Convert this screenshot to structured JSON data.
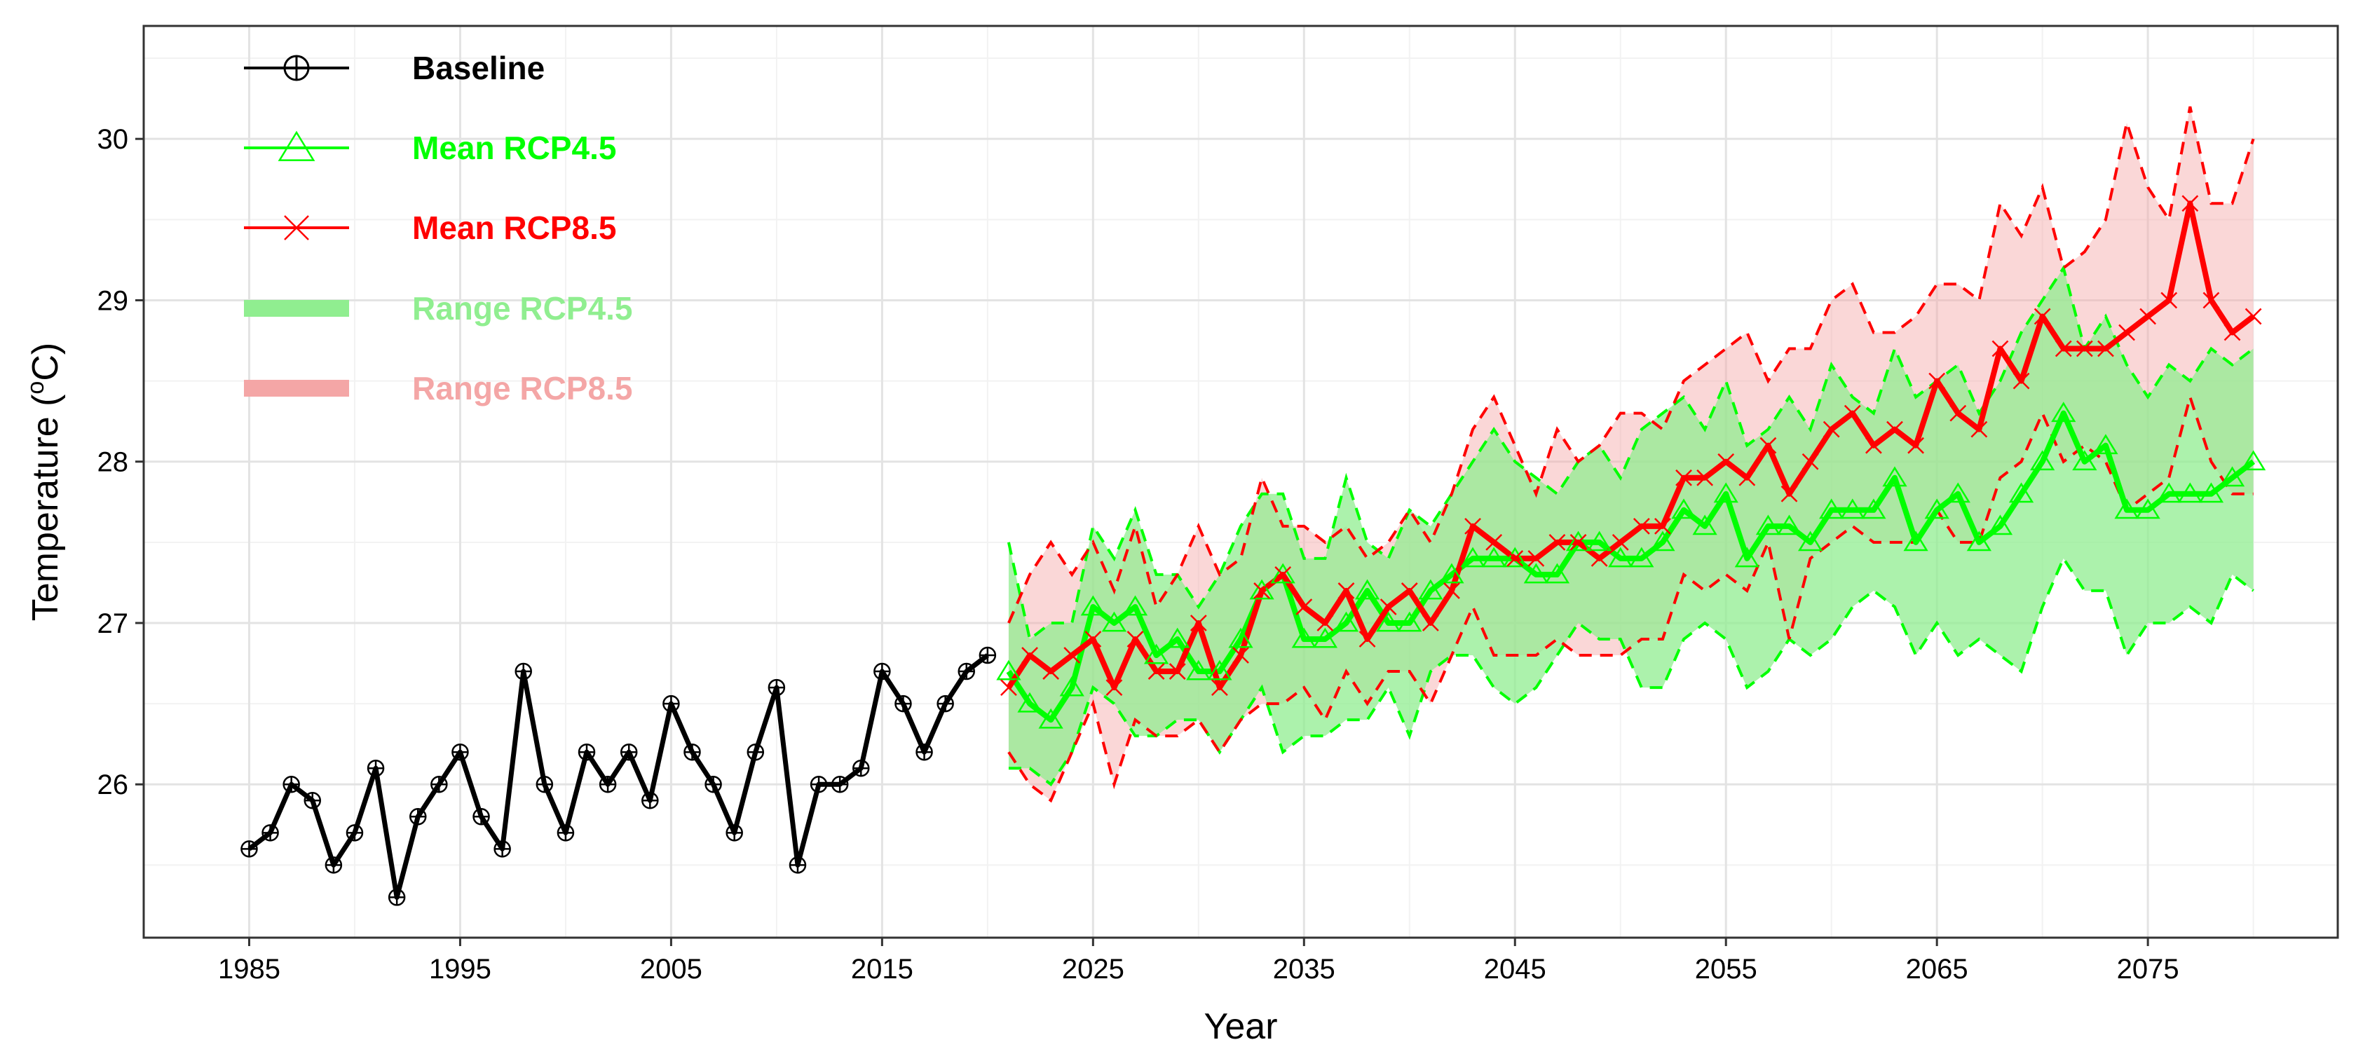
{
  "chart_data": {
    "type": "line",
    "xlabel": "Year",
    "ylabel_main": "Temperature (",
    "ylabel_sup": "o",
    "ylabel_end": "C)",
    "xlim": [
      1980,
      2084
    ],
    "ylim": [
      25.05,
      30.7
    ],
    "x_ticks": [
      1985,
      1995,
      2005,
      2015,
      2025,
      2035,
      2045,
      2055,
      2065,
      2075
    ],
    "x_tick_labels": [
      "1985",
      "1995",
      "2005",
      "2015",
      "2025",
      "2035",
      "2045",
      "2055",
      "2065",
      "2075"
    ],
    "y_ticks": [
      26,
      27,
      28,
      29,
      30
    ],
    "y_tick_labels": [
      "26",
      "27",
      "28",
      "29",
      "30"
    ],
    "grid": true,
    "legend_position": "top-left",
    "legend": [
      {
        "label": "Baseline",
        "color": "#000000",
        "kind": "line-circle-plus"
      },
      {
        "label": "Mean RCP4.5",
        "color": "#00FF00",
        "kind": "line-triangle"
      },
      {
        "label": "Mean RCP8.5",
        "color": "#FF0000",
        "kind": "line-cross"
      },
      {
        "label": "Range RCP4.5",
        "color": "#90EE90",
        "kind": "band"
      },
      {
        "label": "Range RCP8.5",
        "color": "#F4A6A6",
        "kind": "band"
      }
    ],
    "baseline": {
      "name": "Baseline",
      "color": "#000000",
      "x": [
        1985,
        1986,
        1987,
        1988,
        1989,
        1990,
        1991,
        1992,
        1993,
        1994,
        1995,
        1996,
        1997,
        1998,
        1999,
        2000,
        2001,
        2002,
        2003,
        2004,
        2005,
        2006,
        2007,
        2008,
        2009,
        2010,
        2011,
        2012,
        2013,
        2014,
        2015,
        2016,
        2017,
        2018,
        2019,
        2020
      ],
      "y": [
        25.6,
        25.7,
        26.0,
        25.9,
        25.5,
        25.7,
        26.1,
        25.3,
        25.8,
        26.0,
        26.2,
        25.8,
        25.6,
        26.7,
        26.0,
        25.7,
        26.2,
        26.0,
        26.2,
        25.9,
        26.5,
        26.2,
        26.0,
        25.7,
        26.2,
        26.6,
        25.5,
        26.0,
        26.0,
        26.1,
        26.7,
        26.5,
        26.2,
        26.5,
        26.7,
        26.8
      ]
    },
    "future_x": [
      2021,
      2022,
      2023,
      2024,
      2025,
      2026,
      2027,
      2028,
      2029,
      2030,
      2031,
      2032,
      2033,
      2034,
      2035,
      2036,
      2037,
      2038,
      2039,
      2040,
      2041,
      2042,
      2043,
      2044,
      2045,
      2046,
      2047,
      2048,
      2049,
      2050,
      2051,
      2052,
      2053,
      2054,
      2055,
      2056,
      2057,
      2058,
      2059,
      2060,
      2061,
      2062,
      2063,
      2064,
      2065,
      2066,
      2067,
      2068,
      2069,
      2070,
      2071,
      2072,
      2073,
      2074,
      2075,
      2076,
      2077,
      2078,
      2079,
      2080
    ],
    "rcp45": {
      "name": "Mean RCP4.5",
      "color": "#00FF00",
      "band_color": "#90EE90",
      "mean": [
        26.7,
        26.5,
        26.4,
        26.6,
        27.1,
        27.0,
        27.1,
        26.8,
        26.9,
        26.7,
        26.7,
        26.9,
        27.2,
        27.3,
        26.9,
        26.9,
        27.0,
        27.2,
        27.0,
        27.0,
        27.2,
        27.3,
        27.4,
        27.4,
        27.4,
        27.3,
        27.3,
        27.5,
        27.5,
        27.4,
        27.4,
        27.5,
        27.7,
        27.6,
        27.8,
        27.4,
        27.6,
        27.6,
        27.5,
        27.7,
        27.7,
        27.7,
        27.9,
        27.5,
        27.7,
        27.8,
        27.5,
        27.6,
        27.8,
        28.0,
        28.3,
        28.0,
        28.1,
        27.7,
        27.7,
        27.8,
        27.8,
        27.8,
        27.9,
        28.0
      ],
      "upper": [
        27.5,
        26.9,
        27.0,
        27.0,
        27.6,
        27.4,
        27.7,
        27.3,
        27.3,
        27.1,
        27.3,
        27.6,
        27.8,
        27.8,
        27.4,
        27.4,
        27.9,
        27.5,
        27.4,
        27.7,
        27.6,
        27.8,
        28.0,
        28.2,
        28.0,
        27.9,
        27.8,
        28.0,
        28.1,
        27.9,
        28.2,
        28.3,
        28.4,
        28.2,
        28.5,
        28.1,
        28.2,
        28.4,
        28.2,
        28.6,
        28.4,
        28.3,
        28.7,
        28.4,
        28.5,
        28.6,
        28.3,
        28.5,
        28.8,
        29.0,
        29.2,
        28.7,
        28.9,
        28.6,
        28.4,
        28.6,
        28.5,
        28.7,
        28.6,
        28.7
      ],
      "lower": [
        26.1,
        26.1,
        26.0,
        26.2,
        26.6,
        26.5,
        26.3,
        26.3,
        26.4,
        26.4,
        26.2,
        26.4,
        26.6,
        26.2,
        26.3,
        26.3,
        26.4,
        26.4,
        26.6,
        26.3,
        26.7,
        26.8,
        26.8,
        26.6,
        26.5,
        26.6,
        26.8,
        27.0,
        26.9,
        26.9,
        26.6,
        26.6,
        26.9,
        27.0,
        26.9,
        26.6,
        26.7,
        26.9,
        26.8,
        26.9,
        27.1,
        27.2,
        27.1,
        26.8,
        27.0,
        26.8,
        26.9,
        26.8,
        26.7,
        27.1,
        27.4,
        27.2,
        27.2,
        26.8,
        27.0,
        27.0,
        27.1,
        27.0,
        27.3,
        27.2
      ]
    },
    "rcp85": {
      "name": "Mean RCP8.5",
      "color": "#FF0000",
      "band_color": "#F4A6A6",
      "mean": [
        26.6,
        26.8,
        26.7,
        26.8,
        26.9,
        26.6,
        26.9,
        26.7,
        26.7,
        27.0,
        26.6,
        26.8,
        27.2,
        27.3,
        27.1,
        27.0,
        27.2,
        26.9,
        27.1,
        27.2,
        27.0,
        27.2,
        27.6,
        27.5,
        27.4,
        27.4,
        27.5,
        27.5,
        27.4,
        27.5,
        27.6,
        27.6,
        27.9,
        27.9,
        28.0,
        27.9,
        28.1,
        27.8,
        28.0,
        28.2,
        28.3,
        28.1,
        28.2,
        28.1,
        28.5,
        28.3,
        28.2,
        28.7,
        28.5,
        28.9,
        28.7,
        28.7,
        28.7,
        28.8,
        28.9,
        29.0,
        29.6,
        29.0,
        28.8,
        28.9
      ],
      "upper": [
        27.0,
        27.3,
        27.5,
        27.3,
        27.5,
        27.2,
        27.6,
        27.1,
        27.3,
        27.6,
        27.3,
        27.4,
        27.9,
        27.6,
        27.6,
        27.5,
        27.6,
        27.4,
        27.5,
        27.7,
        27.5,
        27.8,
        28.2,
        28.4,
        28.1,
        27.8,
        28.2,
        28.0,
        28.1,
        28.3,
        28.3,
        28.2,
        28.5,
        28.6,
        28.7,
        28.8,
        28.5,
        28.7,
        28.7,
        29.0,
        29.1,
        28.8,
        28.8,
        28.9,
        29.1,
        29.1,
        29.0,
        29.6,
        29.4,
        29.7,
        29.2,
        29.3,
        29.5,
        30.1,
        29.7,
        29.5,
        30.2,
        29.6,
        29.6,
        30.0
      ],
      "lower": [
        26.2,
        26.0,
        25.9,
        26.2,
        26.5,
        26.0,
        26.4,
        26.3,
        26.3,
        26.4,
        26.2,
        26.4,
        26.5,
        26.5,
        26.6,
        26.4,
        26.7,
        26.5,
        26.7,
        26.7,
        26.5,
        26.8,
        27.1,
        26.8,
        26.8,
        26.8,
        26.9,
        26.8,
        26.8,
        26.8,
        26.9,
        26.9,
        27.3,
        27.2,
        27.3,
        27.2,
        27.5,
        26.9,
        27.4,
        27.5,
        27.6,
        27.5,
        27.5,
        27.5,
        27.7,
        27.5,
        27.5,
        27.9,
        28.0,
        28.3,
        28.0,
        28.1,
        28.0,
        27.7,
        27.8,
        27.9,
        28.4,
        28.0,
        27.8,
        27.8
      ]
    }
  }
}
